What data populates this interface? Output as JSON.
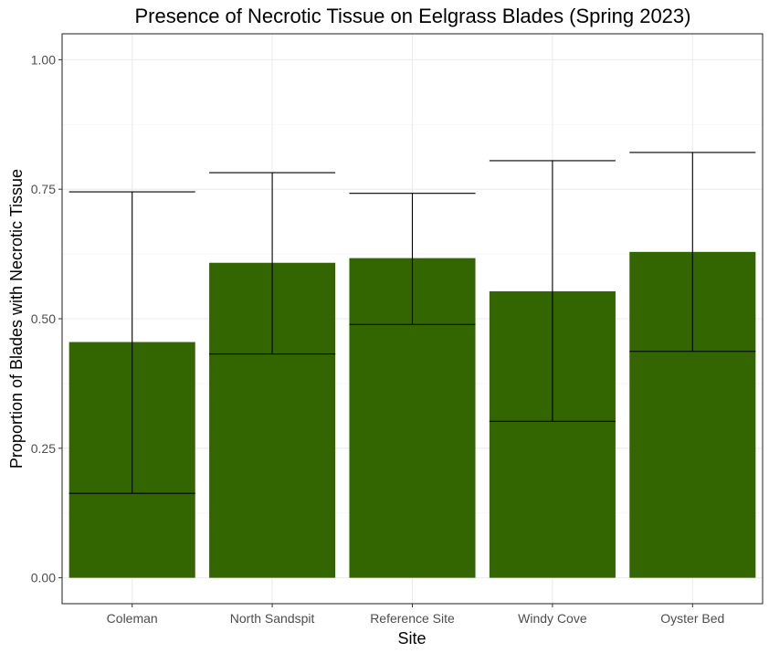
{
  "chart_data": {
    "type": "bar",
    "title": "Presence of Necrotic Tissue on Eelgrass Blades (Spring 2023)",
    "xlabel": "Site",
    "ylabel": "Proportion of Blades with Necrotic Tissue",
    "categories": [
      "Coleman",
      "North Sandspit",
      "Reference Site",
      "Windy Cove",
      "Oyster Bed"
    ],
    "values": [
      0.455,
      0.608,
      0.617,
      0.553,
      0.629
    ],
    "error_low": [
      0.163,
      0.432,
      0.489,
      0.302,
      0.437
    ],
    "error_high": [
      0.745,
      0.782,
      0.742,
      0.805,
      0.821
    ],
    "ylim": [
      -0.05,
      1.05
    ],
    "yticks": [
      0.0,
      0.25,
      0.5,
      0.75,
      1.0
    ],
    "ytick_labels": [
      "0.00",
      "0.25",
      "0.50",
      "0.75",
      "1.00"
    ],
    "bar_color": "#336600",
    "grid": true
  }
}
